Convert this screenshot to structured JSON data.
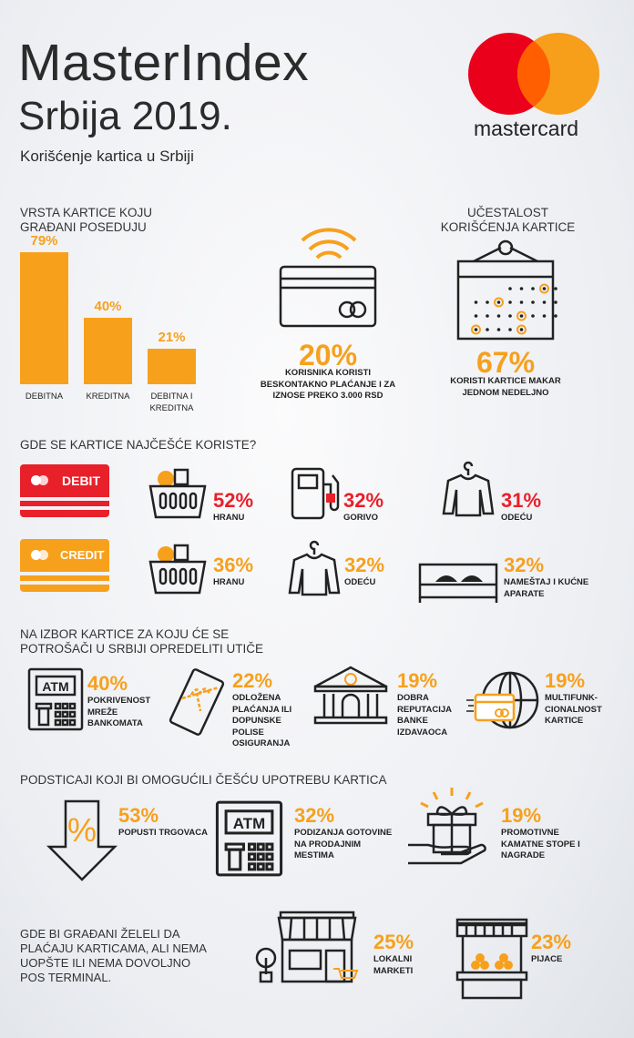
{
  "header": {
    "title": "MasterIndex",
    "subtitle": "Srbija 2019.",
    "tagline": "Korišćenje kartica u Srbiji",
    "logo_text": "mastercard"
  },
  "colors": {
    "orange": "#f7a01c",
    "red": "#e8202a",
    "logo_red": "#eb001b",
    "logo_orange": "#f79e1b"
  },
  "card_types": {
    "heading": "VRSTA KARTICE KOJU GRAĐANI POSEDUJU"
  },
  "chart_data": {
    "type": "bar",
    "title": "VRSTA KARTICE KOJU GRAĐANI POSEDUJU",
    "categories": [
      "DEBITNA",
      "KREDITNA",
      "DEBITNA I KREDITNA"
    ],
    "values": [
      79,
      40,
      21
    ],
    "labels": [
      "79%",
      "40%",
      "21%"
    ],
    "ylim": [
      0,
      79
    ]
  },
  "contactless": {
    "value": "20%",
    "text": "KORISNIKA KORISTI BESKONTAKNO PLAĆANJE  I ZA IZNOSE PREKO 3.000 RSD",
    "icon": "contactless-card-icon"
  },
  "frequency": {
    "heading": "UČESTALOST KORIŠĆENJA KARTICE",
    "value": "67%",
    "text": "KORISTI KARTICE MAKAR JEDNOM NEDELJNO",
    "icon": "calendar-icon"
  },
  "usage": {
    "heading": "GDE SE KARTICE NAJČEŠĆE KORISTE?",
    "debit": {
      "label": "DEBIT",
      "items": [
        {
          "value": "52%",
          "label": "HRANU",
          "icon": "basket-icon"
        },
        {
          "value": "32%",
          "label": "GORIVO",
          "icon": "fuel-pump-icon"
        },
        {
          "value": "31%",
          "label": "ODEĆU",
          "icon": "shirt-icon"
        }
      ]
    },
    "credit": {
      "label": "CREDIT",
      "items": [
        {
          "value": "36%",
          "label": "HRANU",
          "icon": "basket-icon"
        },
        {
          "value": "32%",
          "label": "ODEĆU",
          "icon": "shirt-icon"
        },
        {
          "value": "32%",
          "label": "NAMEŠTAJ I KUĆNE APARATE",
          "icon": "bed-icon"
        }
      ]
    }
  },
  "choice": {
    "heading": "NA IZBOR KARTICE ZA KOJU ĆE SE POTROŠAČI U SRBIJI OPREDELITI UTIČE",
    "items": [
      {
        "value": "40%",
        "label": "POKRIVENOST MREŽE BANKOMATA",
        "icon": "atm-icon",
        "icon_text": "ATM"
      },
      {
        "value": "22%",
        "label": "ODLOŽENA PLAĆANJA ILI DOPUNSKE POLISE OSIGURANJA",
        "icon": "gift-card-icon"
      },
      {
        "value": "19%",
        "label": "DOBRA REPUTACIJA BANKE IZDAVAOCA",
        "icon": "bank-icon"
      },
      {
        "value": "19%",
        "label": "MULTIFUNK-CIONALNOST KARTICE",
        "icon": "globe-card-icon"
      }
    ]
  },
  "incentives": {
    "heading": "PODSTICAJI KOJI BI OMOGUĆILI ČEŠĆU UPOTREBU KARTICA",
    "items": [
      {
        "value": "53%",
        "label": "POPUSTI TRGOVACA",
        "icon": "discount-arrow-icon"
      },
      {
        "value": "32%",
        "label": "PODIZANJA GOTOVINE NA PRODAJNIM MESTIMA",
        "icon": "atm-icon",
        "icon_text": "ATM"
      },
      {
        "value": "19%",
        "label": "PROMOTIVNE KAMATNE STOPE I NAGRADE",
        "icon": "gift-hand-icon"
      }
    ]
  },
  "pos": {
    "heading": "GDE BI GRAĐANI ŽELELI DA PLAĆAJU KARTICAMA, ALI NEMA UOPŠTE ILI NEMA DOVOLJNO POS TERMINAL.",
    "items": [
      {
        "value": "25%",
        "label": "LOKALNI MARKETI",
        "icon": "shop-icon"
      },
      {
        "value": "23%",
        "label": "PIJACE",
        "icon": "market-stall-icon"
      }
    ]
  }
}
